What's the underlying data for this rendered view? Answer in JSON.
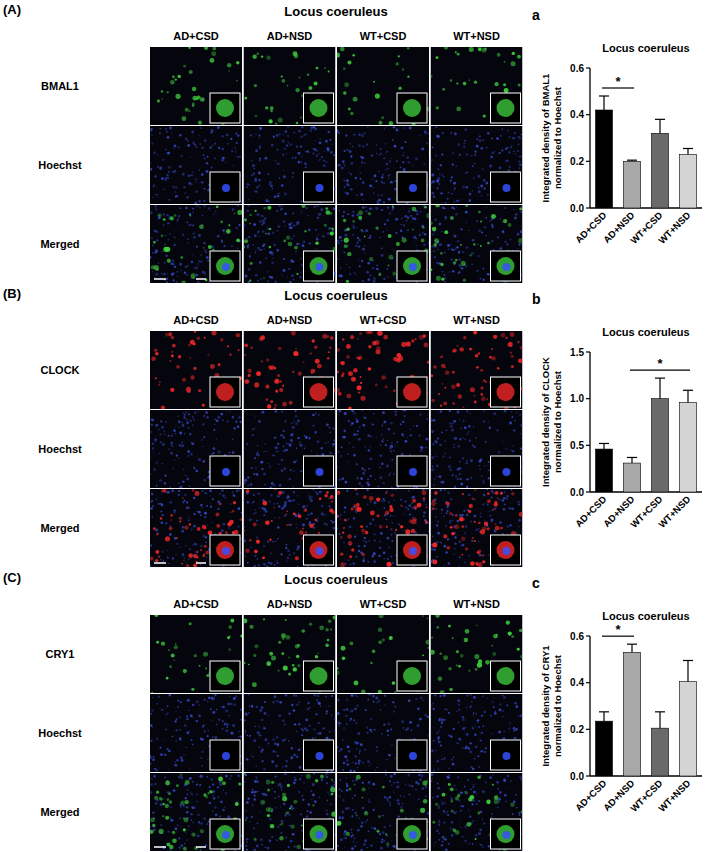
{
  "figure": {
    "panels": [
      {
        "label": "(A)",
        "title": "Locus coeruleus",
        "columns": [
          "AD+CSD",
          "AD+NSD",
          "WT+CSD",
          "WT+NSD"
        ],
        "rows": [
          "BMAL1",
          "Hoechst",
          "Merged"
        ],
        "color": "#3fd23f"
      },
      {
        "label": "(B)",
        "title": "Locus coeruleus",
        "columns": [
          "AD+CSD",
          "AD+NSD",
          "WT+CSD",
          "WT+NSD"
        ],
        "rows": [
          "CLOCK",
          "Hoechst",
          "Merged"
        ],
        "color": "#ff2a2a"
      },
      {
        "label": "(C)",
        "title": "Locus coeruleus",
        "columns": [
          "AD+CSD",
          "AD+NSD",
          "WT+CSD",
          "WT+NSD"
        ],
        "rows": [
          "CRY1",
          "Hoechst",
          "Merged"
        ],
        "color": "#3fd23f"
      }
    ]
  },
  "chart_data": [
    {
      "type": "bar",
      "panel_label": "a",
      "title": "Locus coeruleus",
      "y_label": [
        "Integrated density of BMAL1",
        "normalized to Hoechst"
      ],
      "categories": [
        "AD+CSD",
        "AD+NSD",
        "WT+CSD",
        "WT+NSD"
      ],
      "values": [
        0.42,
        0.2,
        0.32,
        0.23
      ],
      "errors": [
        0.06,
        0.005,
        0.06,
        0.025
      ],
      "colors": [
        "#000000",
        "#a8a8a8",
        "#6a6a6a",
        "#d4d4d4"
      ],
      "ylim": [
        0,
        0.6
      ],
      "yticks": [
        {
          "value": 0,
          "label": "0.0"
        },
        {
          "value": 0.2,
          "label": "0.2"
        },
        {
          "value": 0.4,
          "label": "0.4"
        },
        {
          "value": 0.6,
          "label": "0.6"
        }
      ],
      "significance": [
        {
          "label": "*",
          "from": "AD+CSD",
          "to": "AD+NSD"
        }
      ]
    },
    {
      "type": "bar",
      "panel_label": "b",
      "title": "Locus coeruleus",
      "y_label": [
        "Integrated density of CLOCK",
        "normalized to Hoechst"
      ],
      "categories": [
        "AD+CSD",
        "AD+NSD",
        "WT+CSD",
        "WT+NSD"
      ],
      "values": [
        0.46,
        0.31,
        1.0,
        0.96
      ],
      "errors": [
        0.06,
        0.06,
        0.22,
        0.13
      ],
      "colors": [
        "#000000",
        "#a8a8a8",
        "#6a6a6a",
        "#d4d4d4"
      ],
      "ylim": [
        0,
        1.5
      ],
      "yticks": [
        {
          "value": 0,
          "label": "0.0"
        },
        {
          "value": 0.5,
          "label": "0.5"
        },
        {
          "value": 1,
          "label": "1.0"
        },
        {
          "value": 1.5,
          "label": "1.5"
        }
      ],
      "significance": [
        {
          "label": "*",
          "from": "AD+NSD",
          "to": "WT+NSD"
        }
      ]
    },
    {
      "type": "bar",
      "panel_label": "c",
      "title": "Locus coeruleus",
      "y_label": [
        "Integrated density of CRY1",
        "normalized to Hoechst"
      ],
      "categories": [
        "AD+CSD",
        "AD+NSD",
        "WT+CSD",
        "WT+NSD"
      ],
      "values": [
        0.235,
        0.53,
        0.205,
        0.405
      ],
      "errors": [
        0.04,
        0.035,
        0.07,
        0.09
      ],
      "colors": [
        "#000000",
        "#a8a8a8",
        "#6a6a6a",
        "#d4d4d4"
      ],
      "ylim": [
        0,
        0.6
      ],
      "yticks": [
        {
          "value": 0,
          "label": "0.0"
        },
        {
          "value": 0.2,
          "label": "0.2"
        },
        {
          "value": 0.4,
          "label": "0.4"
        },
        {
          "value": 0.6,
          "label": "0.6"
        }
      ],
      "significance": [
        {
          "label": "*",
          "from": "AD+CSD",
          "to": "AD+NSD"
        }
      ]
    }
  ]
}
